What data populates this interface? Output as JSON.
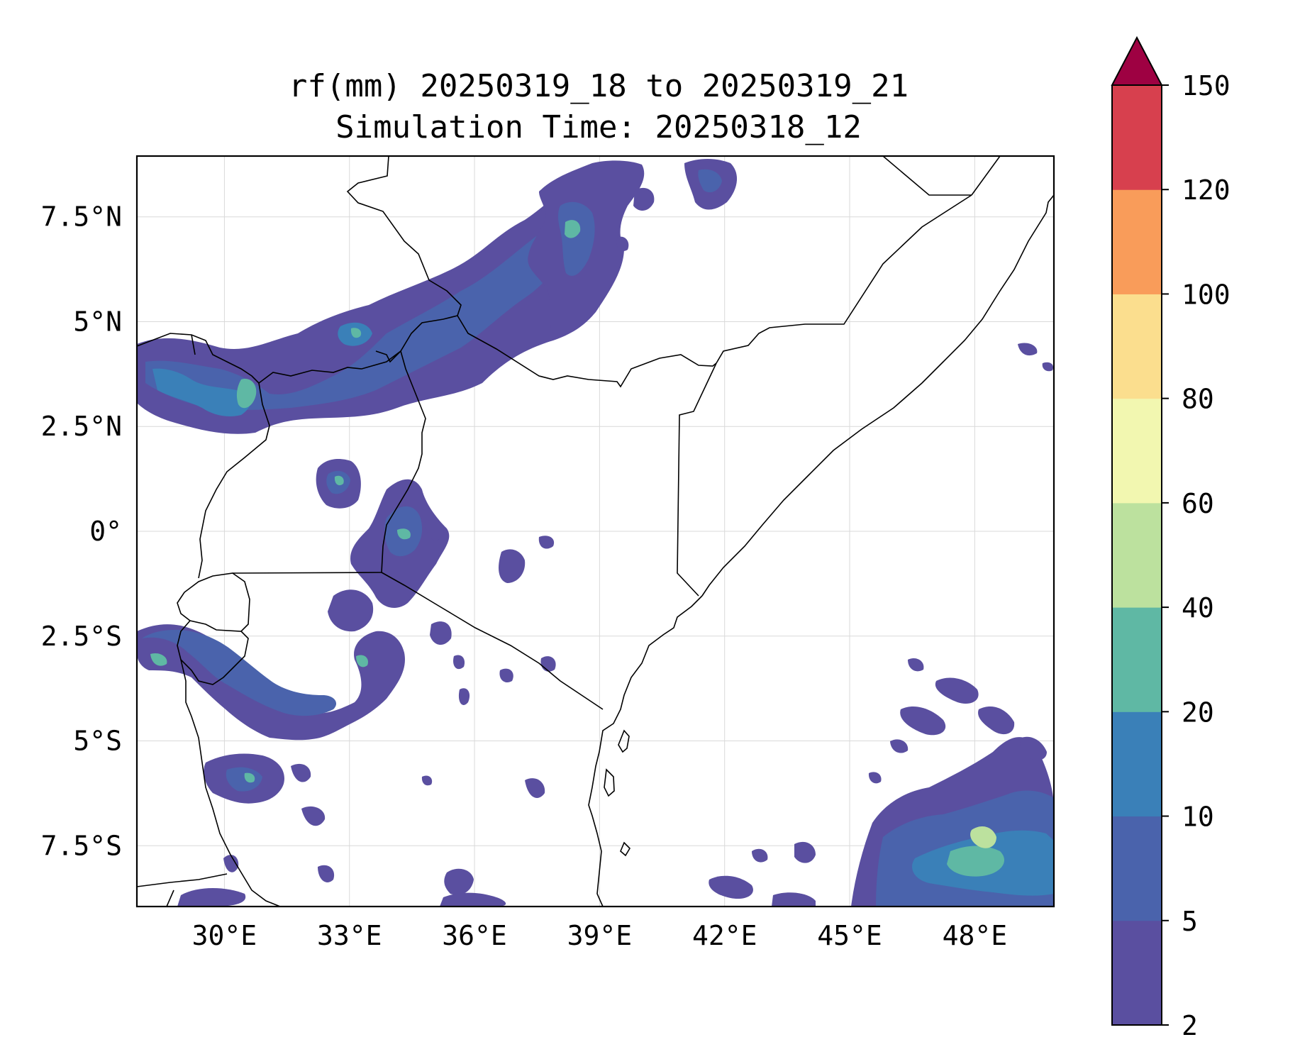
{
  "title": {
    "line1": "rf(mm) 20250319_18 to 20250319_21",
    "line2": "Simulation Time: 20250318_12"
  },
  "map": {
    "lon_range": [
      27.9,
      49.9
    ],
    "lat_range": [
      -8.95,
      8.95
    ],
    "x_ticks": [
      "30°E",
      "33°E",
      "36°E",
      "39°E",
      "42°E",
      "45°E",
      "48°E"
    ],
    "x_tick_values": [
      30,
      33,
      36,
      39,
      42,
      45,
      48
    ],
    "y_ticks": [
      "7.5°N",
      "5°N",
      "2.5°N",
      "0°",
      "2.5°S",
      "5°S",
      "7.5°S"
    ],
    "y_tick_values": [
      7.5,
      5,
      2.5,
      0,
      -2.5,
      -5,
      -7.5
    ],
    "gridlines": true
  },
  "colorbar": {
    "levels": [
      "2",
      "5",
      "10",
      "20",
      "40",
      "60",
      "80",
      "100",
      "120",
      "150"
    ],
    "colors": [
      "#5a4fa0",
      "#4a63ac",
      "#3a80b8",
      "#5fb8a4",
      "#bce19e",
      "#f2f7b0",
      "#fbde8e",
      "#f99c5a",
      "#d7404e"
    ],
    "extend_color": "#9e0142",
    "extend": "max"
  },
  "rain_colors": {
    "low": "#5a4fa0",
    "mid": "#4a63ac",
    "high": "#3a80b8",
    "heavy": "#5fb8a4",
    "peak": "#bce19e"
  }
}
